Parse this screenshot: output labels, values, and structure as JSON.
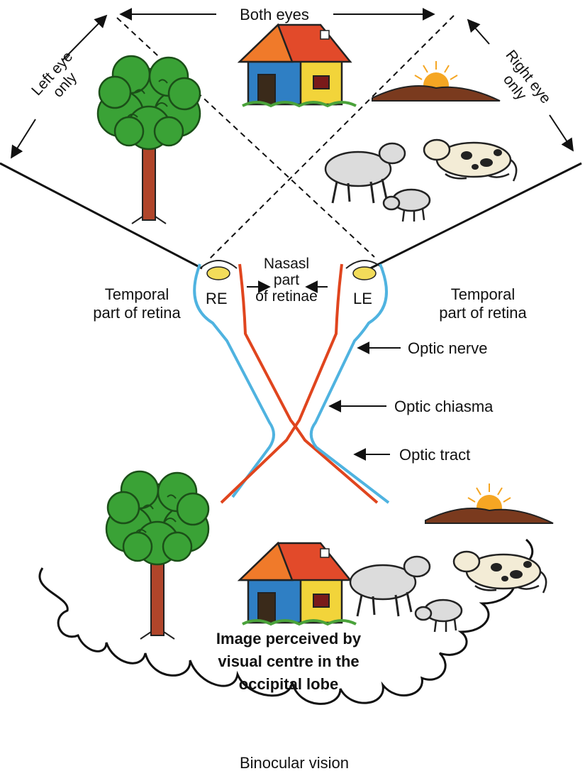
{
  "labels": {
    "both_eyes": "Both eyes",
    "left_eye_only": [
      "Left eye",
      "only"
    ],
    "right_eye_only": [
      "Right eye",
      "only"
    ],
    "temporal_left": [
      "Temporal",
      "part of retina"
    ],
    "temporal_right": [
      "Temporal",
      "part of retina"
    ],
    "nasal": [
      "Nasasl",
      "part",
      "of retinae"
    ],
    "re": "RE",
    "le": "LE",
    "optic_nerve": "Optic nerve",
    "optic_chiasma": "Optic chiasma",
    "optic_tract": "Optic tract",
    "image_perceived": [
      "Image perceived by",
      "visual centre in the",
      "occipital lobe"
    ],
    "caption": "Binocular vision"
  },
  "icons": [
    "tree-icon",
    "house-icon",
    "sun-hill-icon",
    "sheep-icon",
    "lamb-icon",
    "cow-icon",
    "eye-icon"
  ],
  "colors": {
    "left_eye_pathway": "#4fb3e0",
    "right_eye_pathway": "#e0451e",
    "tree_foliage": "#3aa236",
    "tree_trunk": "#b0452a",
    "sun": "#f5a623",
    "hill": "#7a3a1e",
    "lens": "#f2dc5a"
  }
}
